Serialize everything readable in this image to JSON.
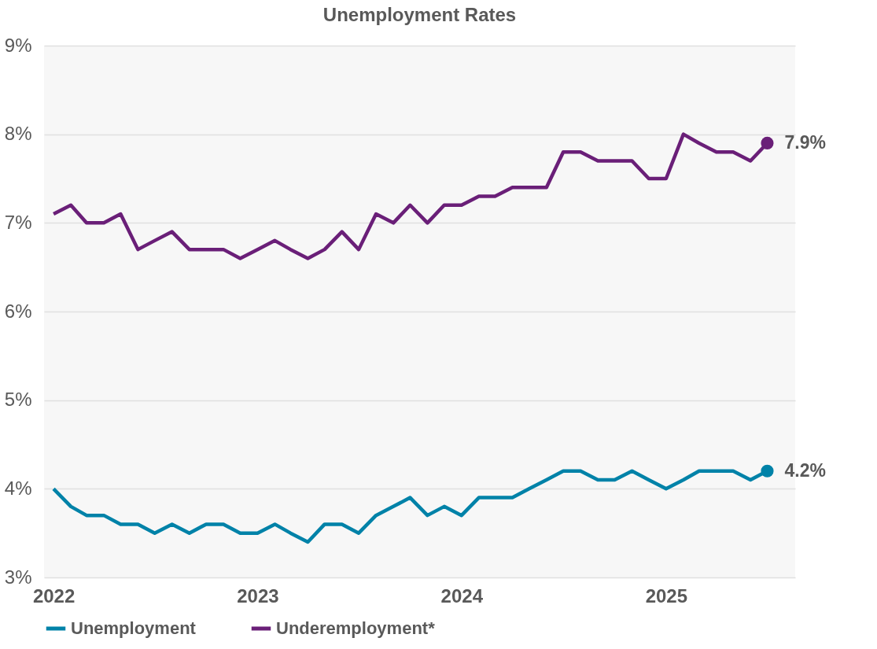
{
  "chart_data": {
    "type": "line",
    "title": "Unemployment Rates",
    "x": [
      "2022-01",
      "2022-02",
      "2022-03",
      "2022-04",
      "2022-05",
      "2022-06",
      "2022-07",
      "2022-08",
      "2022-09",
      "2022-10",
      "2022-11",
      "2022-12",
      "2023-01",
      "2023-02",
      "2023-03",
      "2023-04",
      "2023-05",
      "2023-06",
      "2023-07",
      "2023-08",
      "2023-09",
      "2023-10",
      "2023-11",
      "2023-12",
      "2024-01",
      "2024-02",
      "2024-03",
      "2024-04",
      "2024-05",
      "2024-06",
      "2024-07",
      "2024-08",
      "2024-09",
      "2024-10",
      "2024-11",
      "2024-12",
      "2025-01",
      "2025-02",
      "2025-03",
      "2025-04",
      "2025-05",
      "2025-06",
      "2025-07"
    ],
    "series": [
      {
        "name": "Unemployment",
        "color": "#0082a8",
        "values": [
          4.0,
          3.8,
          3.7,
          3.7,
          3.6,
          3.6,
          3.5,
          3.6,
          3.5,
          3.6,
          3.6,
          3.5,
          3.5,
          3.6,
          3.5,
          3.4,
          3.6,
          3.6,
          3.5,
          3.7,
          3.8,
          3.9,
          3.7,
          3.8,
          3.7,
          3.9,
          3.9,
          3.9,
          4.0,
          4.1,
          4.2,
          4.2,
          4.1,
          4.1,
          4.2,
          4.1,
          4.0,
          4.1,
          4.2,
          4.2,
          4.2,
          4.1,
          4.2
        ],
        "value_labels": [
          null,
          null,
          null,
          null,
          null,
          null,
          null,
          null,
          null,
          null,
          null,
          null,
          null,
          null,
          null,
          null,
          null,
          null,
          null,
          null,
          null,
          null,
          null,
          null,
          null,
          null,
          null,
          null,
          null,
          null,
          null,
          null,
          null,
          null,
          null,
          null,
          null,
          null,
          null,
          null,
          null,
          null,
          "4.2%"
        ]
      },
      {
        "name": "Underemployment*",
        "color": "#6a1f78",
        "values": [
          7.1,
          7.2,
          7.0,
          7.0,
          7.1,
          6.7,
          6.8,
          6.9,
          6.7,
          6.7,
          6.7,
          6.6,
          6.7,
          6.8,
          6.7,
          6.6,
          6.7,
          6.9,
          6.7,
          7.1,
          7.0,
          7.2,
          7.0,
          7.2,
          7.2,
          7.3,
          7.3,
          7.4,
          7.4,
          7.4,
          7.8,
          7.8,
          7.7,
          7.7,
          7.7,
          7.5,
          7.5,
          8.0,
          7.9,
          7.8,
          7.8,
          7.7,
          7.9
        ],
        "value_labels": [
          null,
          null,
          null,
          null,
          null,
          null,
          null,
          null,
          null,
          null,
          null,
          null,
          null,
          null,
          null,
          null,
          null,
          null,
          null,
          null,
          null,
          null,
          null,
          null,
          null,
          null,
          null,
          null,
          null,
          null,
          null,
          null,
          null,
          null,
          null,
          null,
          null,
          null,
          null,
          null,
          null,
          null,
          "7.9%"
        ]
      }
    ],
    "xlim": [
      "2021-12-15",
      "2025-08-20"
    ],
    "xticks": [
      {
        "value": "2022-01",
        "label": "2022"
      },
      {
        "value": "2023-01",
        "label": "2023"
      },
      {
        "value": "2024-01",
        "label": "2024"
      },
      {
        "value": "2025-01",
        "label": "2025"
      }
    ],
    "ylim": [
      3,
      9
    ],
    "yticks": [
      {
        "value": 3,
        "label": "3%"
      },
      {
        "value": 4,
        "label": "4%"
      },
      {
        "value": 5,
        "label": "5%"
      },
      {
        "value": 6,
        "label": "6%"
      },
      {
        "value": 7,
        "label": "7%"
      },
      {
        "value": 8,
        "label": "8%"
      },
      {
        "value": 9,
        "label": "9%"
      }
    ],
    "grid": "y",
    "legend": "bottom",
    "marker": "none",
    "line_style": "solid"
  }
}
